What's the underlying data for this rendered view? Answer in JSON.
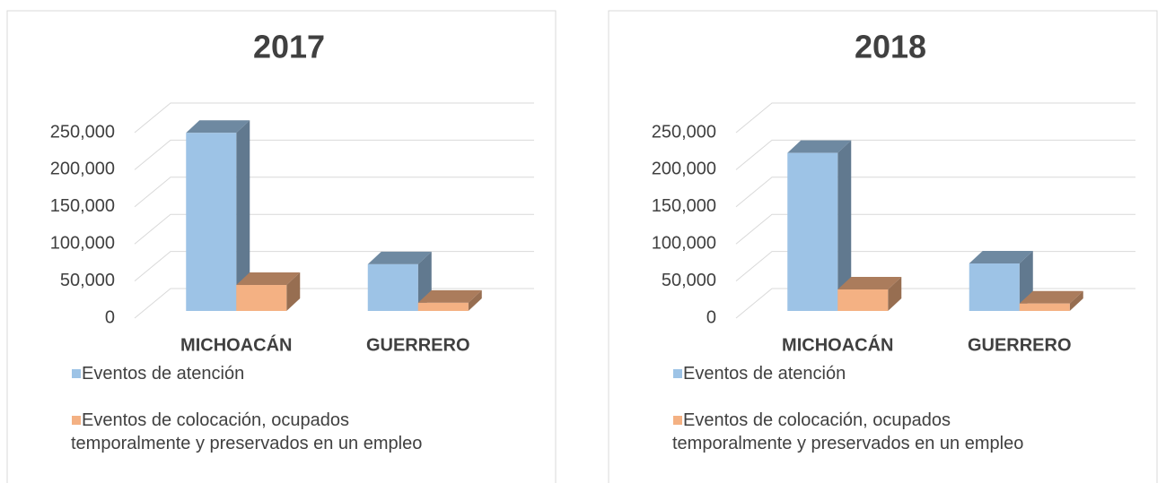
{
  "chart_data": [
    {
      "type": "bar3d",
      "title": "2017",
      "categories": [
        "MICHOACÁN",
        "GUERRERO"
      ],
      "series": [
        {
          "name": "Eventos de atención",
          "color": "#9dc3e6",
          "values": [
            240000,
            63000
          ]
        },
        {
          "name": "Eventos de colocación, ocupados temporalmente y preservados en un empleo",
          "color": "#f4b183",
          "values": [
            35000,
            11000
          ]
        }
      ],
      "ylim": [
        0,
        250000
      ],
      "yticks": [
        {
          "value": 0,
          "label": "0"
        },
        {
          "value": 50000,
          "label": "50,000"
        },
        {
          "value": 100000,
          "label": "100,000"
        },
        {
          "value": 150000,
          "label": "150,000"
        },
        {
          "value": 200000,
          "label": "200,000"
        },
        {
          "value": 250000,
          "label": "250,000"
        }
      ],
      "grid": true
    },
    {
      "type": "bar3d",
      "title": "2018",
      "categories": [
        "MICHOACÁN",
        "GUERRERO"
      ],
      "series": [
        {
          "name": "Eventos de atención",
          "color": "#9dc3e6",
          "values": [
            213000,
            64000
          ]
        },
        {
          "name": "Eventos de colocación, ocupados temporalmente y preservados en un empleo",
          "color": "#f4b183",
          "values": [
            29000,
            10000
          ]
        }
      ],
      "ylim": [
        0,
        250000
      ],
      "yticks": [
        {
          "value": 0,
          "label": "0"
        },
        {
          "value": 50000,
          "label": "50,000"
        },
        {
          "value": 100000,
          "label": "100,000"
        },
        {
          "value": 150000,
          "label": "150,000"
        },
        {
          "value": 200000,
          "label": "200,000"
        },
        {
          "value": 250000,
          "label": "250,000"
        }
      ],
      "grid": true
    }
  ]
}
